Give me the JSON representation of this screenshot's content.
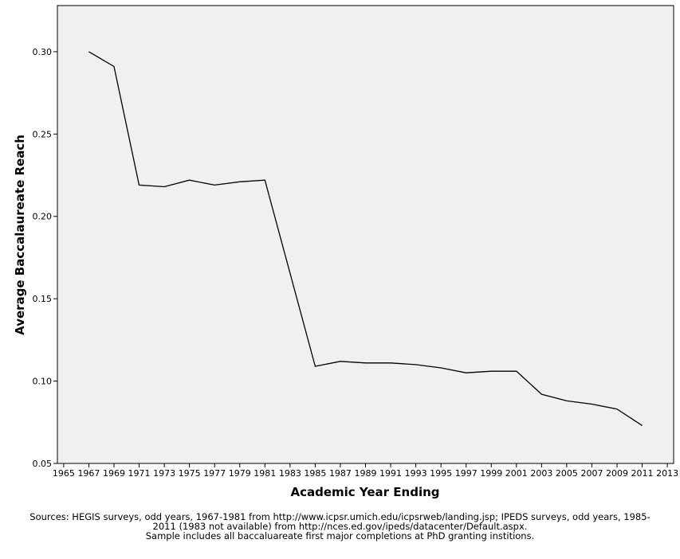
{
  "chart_data": {
    "type": "line",
    "title": "",
    "xlabel": "Academic Year Ending",
    "ylabel": "Average Baccalaureate Reach",
    "xlim": [
      1964.5,
      2013.5
    ],
    "ylim": [
      0.05,
      0.328
    ],
    "x_ticks": [
      1965,
      1967,
      1969,
      1971,
      1973,
      1975,
      1977,
      1979,
      1981,
      1983,
      1985,
      1987,
      1989,
      1991,
      1993,
      1995,
      1997,
      1999,
      2001,
      2003,
      2005,
      2007,
      2009,
      2011,
      2013
    ],
    "y_ticks": [
      0.05,
      0.1,
      0.15,
      0.2,
      0.25,
      0.3
    ],
    "y_tick_labels": [
      "0.05",
      "0.10",
      "0.15",
      "0.20",
      "0.25",
      "0.30"
    ],
    "grid": false,
    "background": "#f0f0f0",
    "line_color": "#000000",
    "series": [
      {
        "x": [
          1967,
          1969,
          1971,
          1973,
          1975,
          1977,
          1979,
          1981,
          1985,
          1987,
          1989,
          1991,
          1993,
          1995,
          1997,
          1999,
          2001,
          2003,
          2005,
          2007,
          2009,
          2011
        ],
        "values": [
          0.3,
          0.291,
          0.219,
          0.218,
          0.222,
          0.219,
          0.221,
          0.222,
          0.109,
          0.112,
          0.111,
          0.111,
          0.11,
          0.108,
          0.105,
          0.106,
          0.106,
          0.092,
          0.088,
          0.086,
          0.083,
          0.073
        ]
      }
    ]
  },
  "notes": {
    "line1": "Sources: HEGIS surveys, odd years, 1967-1981 from http://www.icpsr.umich.edu/icpsrweb/landing.jsp; IPEDS surveys, odd years, 1985-",
    "line2": "2011 (1983 not available) from http://nces.ed.gov/ipeds/datacenter/Default.aspx.",
    "line3": "Sample includes all baccaluareate first major completions at PhD granting institions."
  }
}
